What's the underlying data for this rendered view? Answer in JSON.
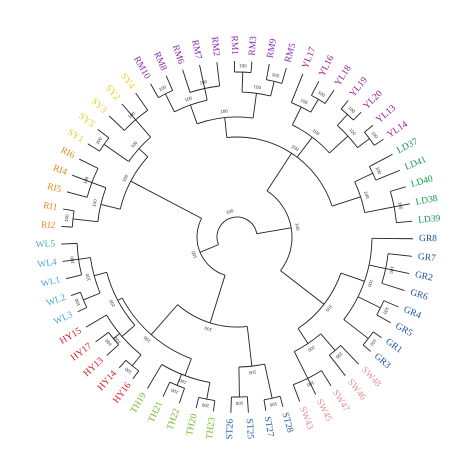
{
  "figure": {
    "support_value": "100",
    "groups": [
      {
        "id": "ST",
        "color": "#1f5fa8",
        "leaves": [
          "ST28",
          "ST27",
          "ST25",
          "ST26"
        ]
      },
      {
        "id": "TH",
        "color": "#76b82a",
        "leaves": [
          "TH23",
          "TH20",
          "TH22",
          "TH21",
          "TH19"
        ]
      },
      {
        "id": "HY",
        "color": "#d7191c",
        "leaves": [
          "HY16",
          "HY14",
          "HY13",
          "HY17",
          "HY15"
        ]
      },
      {
        "id": "WL",
        "color": "#4aa8d8",
        "leaves": [
          "WL3",
          "WL2",
          "WL1",
          "WL4",
          "WL5"
        ]
      },
      {
        "id": "RI",
        "color": "#e08a1e",
        "leaves": [
          "RI2",
          "RI1",
          "RI5",
          "RI4",
          "RI6"
        ]
      },
      {
        "id": "SY",
        "color": "#e8cf2a",
        "leaves": [
          "SY1",
          "SY5",
          "SY3",
          "SY2",
          "SY4"
        ]
      },
      {
        "id": "RM",
        "color": "#8a2bb8",
        "leaves": [
          "RM10",
          "RM8",
          "RM6",
          "RM7",
          "RM2",
          "RM1",
          "RM3",
          "RM9",
          "RM5"
        ]
      },
      {
        "id": "YL",
        "color": "#a0148c",
        "leaves": [
          "YL17",
          "YL16",
          "YL18",
          "YL19",
          "YL20",
          "YL13",
          "YL14"
        ]
      },
      {
        "id": "LD",
        "color": "#109a4e",
        "leaves": [
          "LD37",
          "LD41",
          "LD40",
          "LD38",
          "LD39"
        ]
      },
      {
        "id": "GR",
        "color": "#1b4f9c",
        "leaves": [
          "GR8",
          "GR7",
          "GR2",
          "GR6",
          "GR4",
          "GR5",
          "GR1",
          "GR3"
        ]
      },
      {
        "id": "SW",
        "color": "#e8929a",
        "leaves": [
          "SW48",
          "SW46",
          "SW47",
          "SW45",
          "SW43"
        ]
      }
    ]
  }
}
